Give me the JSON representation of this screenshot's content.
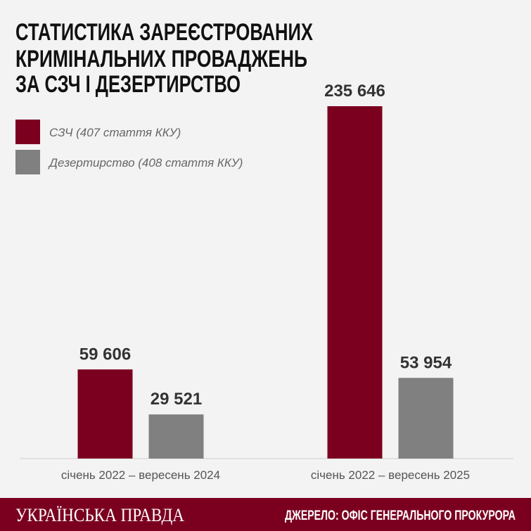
{
  "chart_data": {
    "type": "bar",
    "title": [
      "СТАТИСТИКА ЗАРЕЄСТРОВАНИХ",
      "КРИМІНАЛЬНИХ ПРОВАДЖЕНЬ",
      "ЗА СЗЧ І ДЕЗЕРТИРСТВО"
    ],
    "categories": [
      "січень 2022 – вересень 2024",
      "січень 2022 – вересень 2025"
    ],
    "series": [
      {
        "name": "СЗЧ (407 стаття ККУ)",
        "color": "#7b0020",
        "values": [
          59606,
          235646
        ],
        "value_labels": [
          "59 606",
          "235 646"
        ]
      },
      {
        "name": "Дезертирство (408 стаття ККУ)",
        "color": "#808080",
        "values": [
          29521,
          53954
        ],
        "value_labels": [
          "29 521",
          "53 954"
        ]
      }
    ],
    "brand": "УКРАЇНСЬКА ПРАВДА",
    "source": "ДЖЕРЕЛО: ОФІС ГЕНЕРАЛЬНОГО ПРОКУРОРА"
  }
}
